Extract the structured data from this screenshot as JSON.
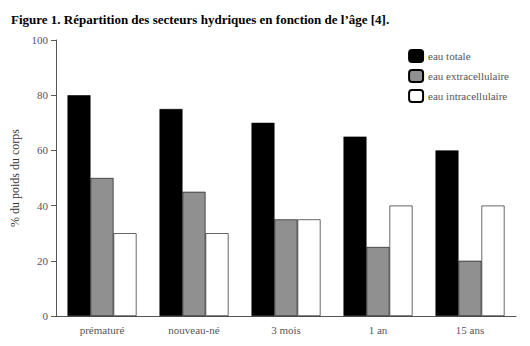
{
  "chart_data": {
    "type": "bar",
    "title": "Figure 1. Répartition des secteurs hydriques en fonction de l’âge [4].",
    "categories": [
      "prématuré",
      "nouveau-né",
      "3 mois",
      "1 an",
      "15 ans"
    ],
    "series": [
      {
        "name": "eau totale",
        "color": "#000000",
        "values": [
          80,
          75,
          70,
          65,
          60
        ]
      },
      {
        "name": "eau extracellulaire",
        "color": "#909090",
        "values": [
          50,
          45,
          35,
          25,
          20
        ]
      },
      {
        "name": "eau intracellulaire",
        "color": "#ffffff",
        "values": [
          30,
          30,
          35,
          40,
          40
        ]
      }
    ],
    "ylabel": "% du poids du corps",
    "ylim": [
      0,
      100
    ],
    "yticks": [
      0,
      20,
      40,
      60,
      80,
      100
    ],
    "grid": false,
    "legend": "upper right"
  }
}
